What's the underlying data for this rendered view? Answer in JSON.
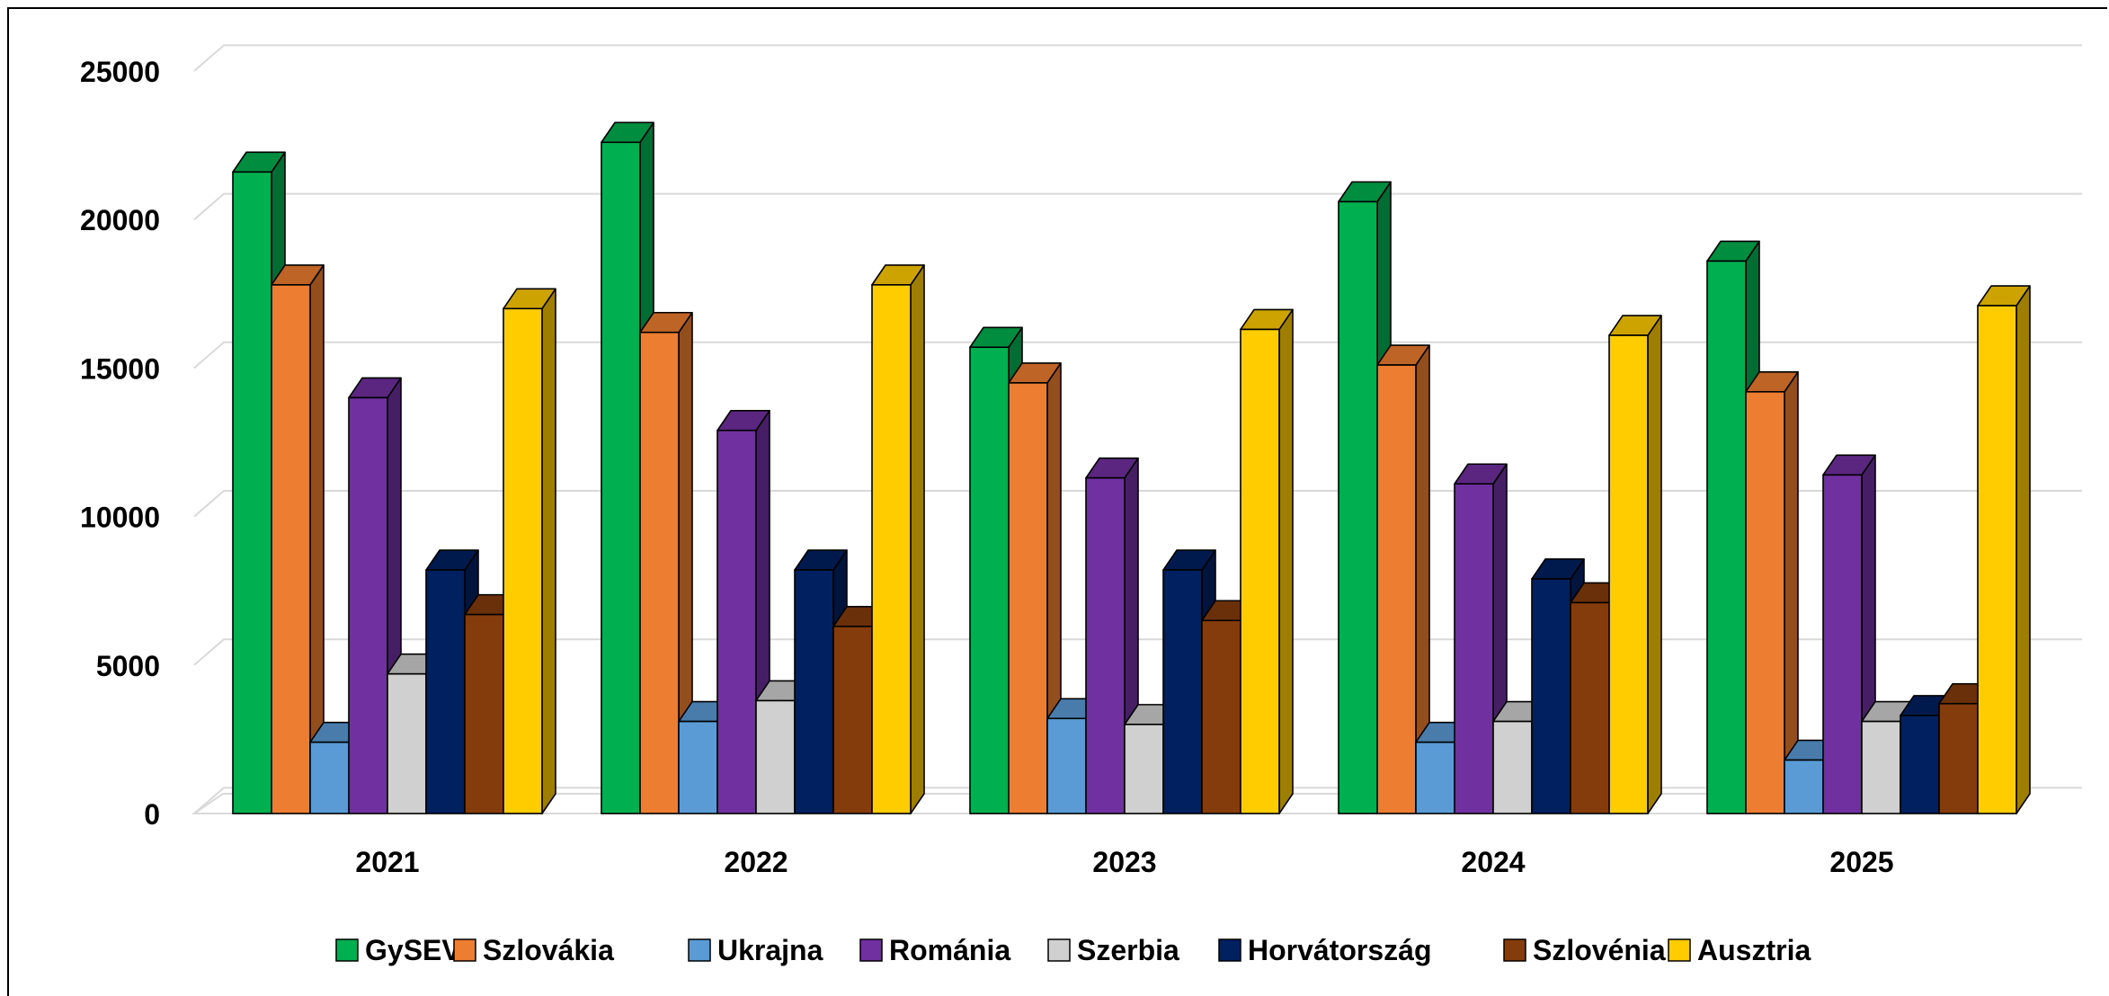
{
  "chart_data": {
    "type": "bar",
    "subtype": "3d-clustered-column",
    "categories": [
      "2021",
      "2022",
      "2023",
      "2024",
      "2025"
    ],
    "series": [
      {
        "name": "GySEV",
        "color": "#00b050",
        "values": [
          21600,
          22600,
          15700,
          20600,
          18600
        ]
      },
      {
        "name": "Szlovákia",
        "color": "#ed7d31",
        "values": [
          17800,
          16200,
          14500,
          15100,
          14200
        ]
      },
      {
        "name": "Ukrajna",
        "color": "#5b9bd5",
        "values": [
          2400,
          3100,
          3200,
          2400,
          1800
        ]
      },
      {
        "name": "Románia",
        "color": "#7030a0",
        "values": [
          14000,
          12900,
          11300,
          11100,
          11400
        ]
      },
      {
        "name": "Szerbia",
        "color": "#d0d0d0",
        "values": [
          4700,
          3800,
          3000,
          3100,
          3100
        ]
      },
      {
        "name": "Horvátország",
        "color": "#002060",
        "values": [
          8200,
          8200,
          8200,
          7900,
          3300
        ]
      },
      {
        "name": "Szlovénia",
        "color": "#843c0c",
        "values": [
          6700,
          6300,
          6500,
          7100,
          3700
        ]
      },
      {
        "name": "Ausztria",
        "color": "#ffcc00",
        "values": [
          17000,
          17800,
          16300,
          16100,
          17100
        ]
      }
    ],
    "ylim": [
      0,
      25000
    ],
    "yticks": [
      "0",
      "5000",
      "10000",
      "15000",
      "20000",
      "25000"
    ],
    "grid": true,
    "legend_position": "bottom"
  }
}
